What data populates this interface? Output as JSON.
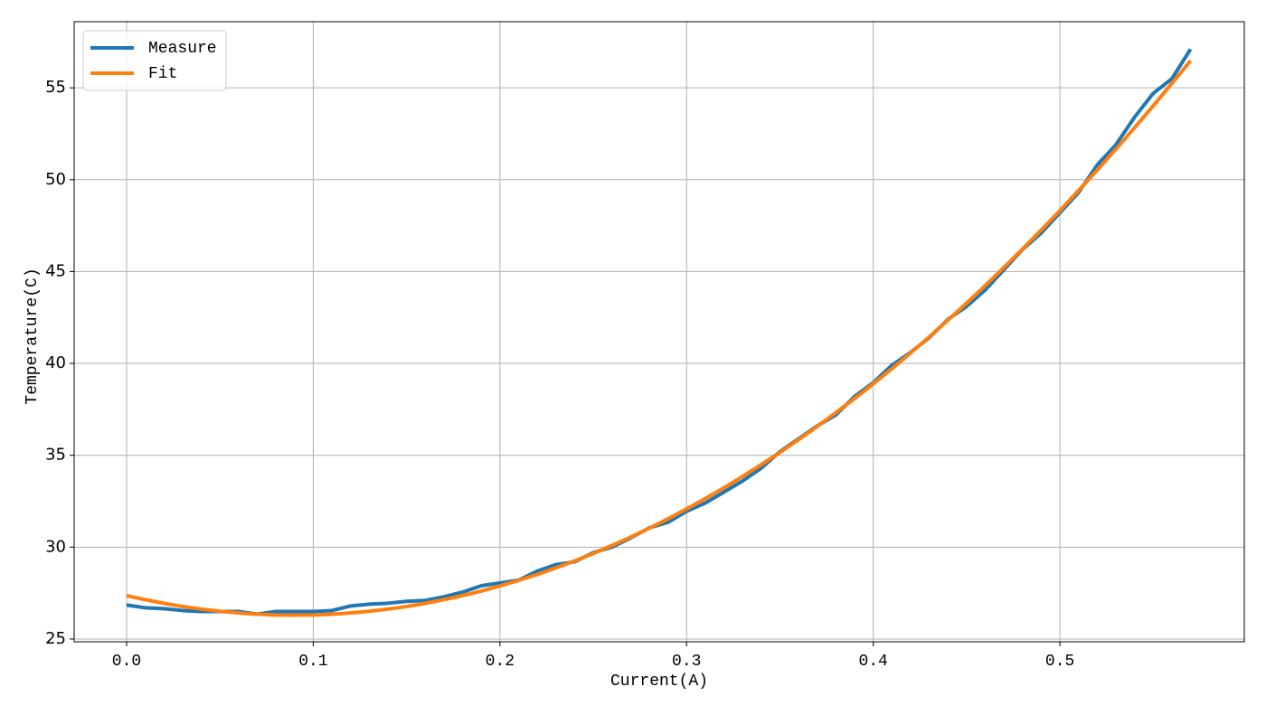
{
  "chart_data": {
    "type": "line",
    "xlabel": "Current(A)",
    "ylabel": "Temperature(C)",
    "x": [
      0,
      0.01,
      0.02,
      0.03,
      0.04,
      0.05,
      0.06,
      0.07,
      0.08,
      0.09,
      0.1,
      0.11,
      0.12,
      0.13,
      0.14,
      0.15,
      0.16,
      0.17,
      0.18,
      0.19,
      0.2,
      0.21,
      0.22,
      0.23,
      0.24,
      0.25,
      0.26,
      0.27,
      0.28,
      0.29,
      0.3,
      0.31,
      0.32,
      0.33,
      0.34,
      0.35,
      0.36,
      0.37,
      0.38,
      0.39,
      0.4,
      0.41,
      0.42,
      0.43,
      0.44,
      0.45,
      0.46,
      0.47,
      0.48,
      0.49,
      0.5,
      0.51,
      0.52,
      0.53,
      0.54,
      0.55,
      0.56,
      0.57
    ],
    "series": [
      {
        "name": "Measure",
        "color": "#1f77b4",
        "values": [
          26.85,
          26.7,
          26.65,
          26.55,
          26.5,
          26.5,
          26.5,
          26.35,
          26.5,
          26.5,
          26.5,
          26.55,
          26.8,
          26.9,
          26.95,
          27.05,
          27.1,
          27.3,
          27.55,
          27.9,
          28.05,
          28.2,
          28.7,
          29.05,
          29.2,
          29.7,
          30.0,
          30.5,
          31.05,
          31.35,
          31.95,
          32.4,
          33.0,
          33.6,
          34.3,
          35.2,
          35.9,
          36.6,
          37.2,
          38.2,
          38.95,
          39.9,
          40.6,
          41.4,
          42.4,
          43.1,
          44.0,
          45.1,
          46.2,
          47.1,
          48.2,
          49.3,
          50.8,
          51.9,
          53.4,
          54.7,
          55.5,
          57.1
        ]
      },
      {
        "name": "Fit",
        "color": "#ff7f0e",
        "values": [
          27.36,
          27.14,
          26.94,
          26.77,
          26.63,
          26.51,
          26.42,
          26.35,
          26.31,
          26.3,
          26.31,
          26.35,
          26.42,
          26.51,
          26.63,
          26.77,
          26.94,
          27.14,
          27.36,
          27.61,
          27.89,
          28.19,
          28.51,
          28.87,
          29.25,
          29.65,
          30.09,
          30.54,
          31.03,
          31.54,
          32.08,
          32.64,
          33.23,
          33.85,
          34.49,
          35.16,
          35.85,
          36.57,
          37.32,
          38.09,
          38.89,
          39.71,
          40.57,
          41.44,
          42.35,
          43.28,
          44.23,
          45.22,
          46.23,
          47.26,
          48.32,
          49.41,
          50.52,
          51.66,
          52.83,
          54.02,
          55.24,
          56.48
        ]
      }
    ],
    "xlim": [
      -0.0281,
      0.5988
    ],
    "ylim": [
      24.85,
      58.6
    ],
    "xticks": [
      {
        "value": 0,
        "label": "0.0"
      },
      0.1,
      0.2,
      0.3,
      0.4,
      0.5
    ],
    "yticks": [
      25,
      30,
      35,
      40,
      45,
      50,
      55
    ],
    "grid": true,
    "legend": "upper-left"
  }
}
